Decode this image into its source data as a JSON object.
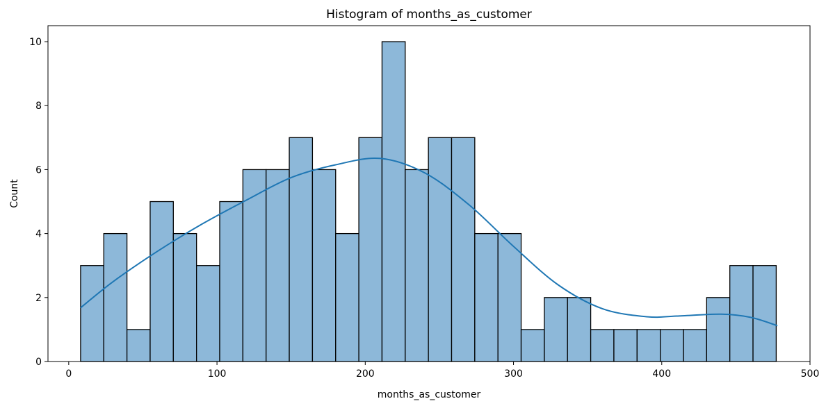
{
  "chart_data": {
    "type": "bar",
    "title": "Histogram of months_as_customer",
    "xlabel": "months_as_customer",
    "ylabel": "Count",
    "xlim": [
      -14,
      500
    ],
    "ylim": [
      0,
      10.5
    ],
    "x_ticks": [
      0,
      100,
      200,
      300,
      400,
      500
    ],
    "y_ticks": [
      0,
      2,
      4,
      6,
      8,
      10
    ],
    "bin_start": 8,
    "bin_width": 15.64,
    "counts": [
      3,
      4,
      1,
      5,
      4,
      3,
      5,
      6,
      6,
      7,
      6,
      4,
      7,
      10,
      6,
      7,
      7,
      4,
      4,
      1,
      2,
      2,
      1,
      1,
      1,
      1,
      1,
      2,
      3,
      3
    ],
    "bar_fill": "#8db8d9",
    "bar_edge": "#000000",
    "kde_color": "#1f77b4",
    "kde": {
      "x": [
        8,
        30,
        60,
        90,
        120,
        150,
        180,
        210,
        240,
        270,
        300,
        330,
        360,
        390,
        410,
        440,
        460,
        478
      ],
      "y": [
        1.68,
        2.5,
        3.45,
        4.3,
        5.05,
        5.75,
        6.15,
        6.35,
        5.9,
        4.9,
        3.6,
        2.4,
        1.65,
        1.4,
        1.42,
        1.48,
        1.38,
        1.12
      ]
    },
    "grid": false,
    "legend": "none"
  }
}
